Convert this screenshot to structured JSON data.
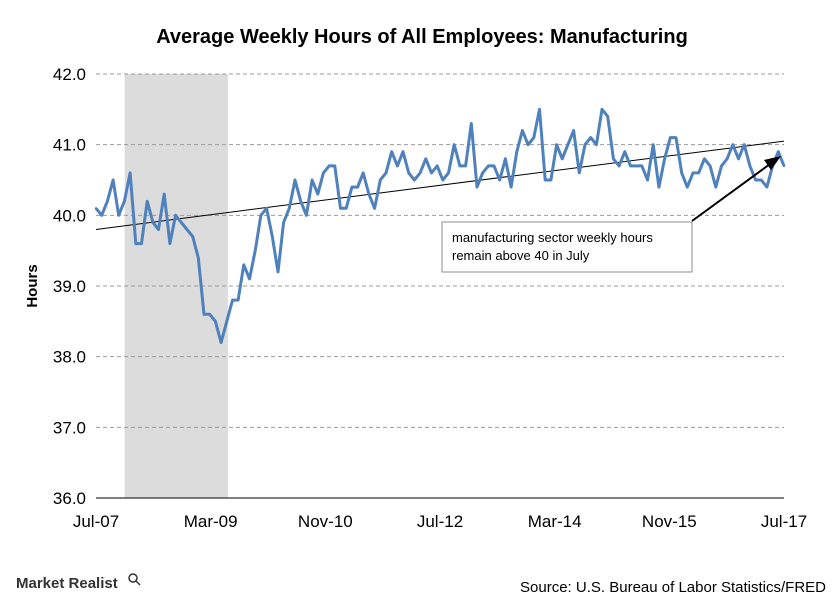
{
  "chart_data": {
    "type": "line",
    "title": "Average Weekly Hours of All Employees: Manufacturing",
    "ylabel": "Hours",
    "xlabel": "",
    "ylim": [
      36.0,
      42.0
    ],
    "yticks": [
      "36.0",
      "37.0",
      "38.0",
      "39.0",
      "40.0",
      "41.0",
      "42.0"
    ],
    "xticks": [
      "Jul-07",
      "Mar-09",
      "Nov-10",
      "Jul-12",
      "Mar-14",
      "Nov-15",
      "Jul-17"
    ],
    "x_start": "Jul-07",
    "x_end": "Jul-17",
    "grid": true,
    "recession_shading": {
      "start": "Dec-07",
      "end": "Jun-09"
    },
    "series": [
      {
        "color": "#4f81bd",
        "values": [
          40.1,
          40.0,
          40.2,
          40.5,
          40.0,
          40.2,
          40.6,
          39.6,
          39.6,
          40.2,
          39.9,
          39.8,
          40.3,
          39.6,
          40.0,
          39.9,
          39.8,
          39.7,
          39.4,
          38.6,
          38.6,
          38.5,
          38.2,
          38.5,
          38.8,
          38.8,
          39.3,
          39.1,
          39.5,
          40.0,
          40.1,
          39.7,
          39.2,
          39.9,
          40.1,
          40.5,
          40.2,
          40.0,
          40.5,
          40.3,
          40.6,
          40.7,
          40.7,
          40.1,
          40.1,
          40.4,
          40.4,
          40.6,
          40.3,
          40.1,
          40.5,
          40.6,
          40.9,
          40.7,
          40.9,
          40.6,
          40.5,
          40.6,
          40.8,
          40.6,
          40.7,
          40.5,
          40.6,
          41.0,
          40.7,
          40.7,
          41.3,
          40.4,
          40.6,
          40.7,
          40.7,
          40.5,
          40.8,
          40.4,
          40.9,
          41.2,
          41.0,
          41.1,
          41.5,
          40.5,
          40.5,
          41.0,
          40.8,
          41.0,
          41.2,
          40.6,
          41.0,
          41.1,
          41.0,
          41.5,
          41.4,
          40.8,
          40.7,
          40.9,
          40.7,
          40.7,
          40.7,
          40.5,
          41.0,
          40.4,
          40.8,
          41.1,
          41.1,
          40.6,
          40.4,
          40.6,
          40.6,
          40.8,
          40.7,
          40.4,
          40.7,
          40.8,
          41.0,
          40.8,
          41.0,
          40.7,
          40.5,
          40.5,
          40.4,
          40.7,
          40.9,
          40.7
        ]
      },
      {
        "name": "trend",
        "color": "#000000",
        "start": 39.8,
        "end": 41.05
      }
    ],
    "annotation": {
      "text_line1": "manufacturing sector weekly hours",
      "text_line2": "remain above 40 in July"
    }
  },
  "footer": {
    "source": "Source: U.S. Bureau of Labor Statistics/FRED",
    "brand": "Market Realist"
  }
}
